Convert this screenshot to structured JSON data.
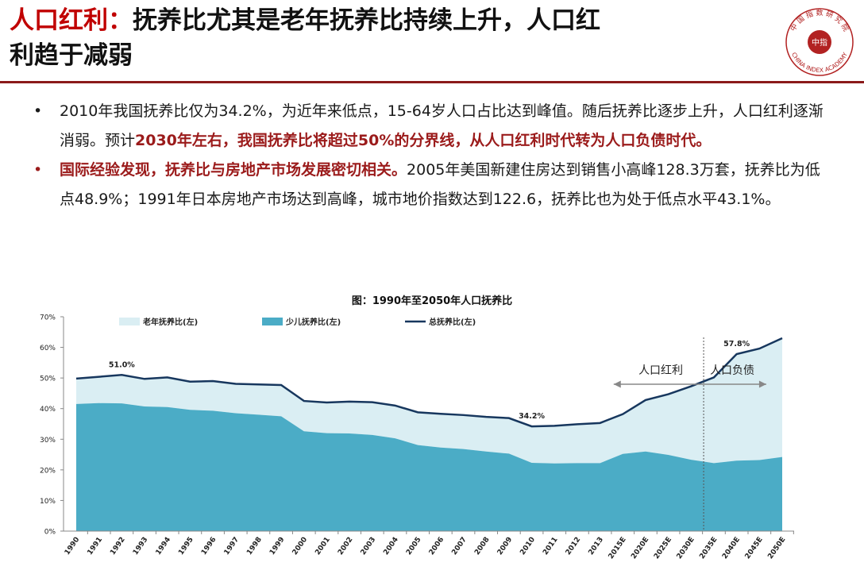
{
  "title": {
    "prefix": "人口红利：",
    "line1_rest": "抚养比尤其是老年抚养比持续上升，人口红",
    "line2": "利趋于减弱"
  },
  "logo": {
    "top_text": "中 国 指 数 研 究 院",
    "bottom_text": "CHINA INDEX ACADEMY",
    "center_text": "中指",
    "color": "#b22222"
  },
  "bullets": [
    {
      "marker": "•",
      "marker_color": "#1a1a1a",
      "segments": [
        {
          "text": "2010年我国抚养比仅为34.2%，为近年来低点，15-64岁人口占比达到峰值。随后抚养比逐步上升，人口红利逐渐消弱。预计",
          "hl": false
        },
        {
          "text": "2030年左右，我国抚养比将超过50%的分界线，从人口红利时代转为人口负债时代。",
          "hl": true
        }
      ]
    },
    {
      "marker": "•",
      "marker_color": "#9b1b1b",
      "segments": [
        {
          "text": "国际经验发现，抚养比与房地产市场发展密切相关。",
          "hl": true
        },
        {
          "text": "2005年美国新建住房达到销售小高峰128.3万套，抚养比为低点48.9%；1991年日本房地产市场达到高峰，城市地价指数达到122.6，抚养比也为处于低点水平43.1%。",
          "hl": false
        }
      ]
    }
  ],
  "chart_data": {
    "type": "area",
    "title": "图：1990年至2050年人口抚养比",
    "categories": [
      "1990",
      "1991",
      "1992",
      "1993",
      "1994",
      "1995",
      "1996",
      "1997",
      "1998",
      "1999",
      "2000",
      "2001",
      "2002",
      "2003",
      "2004",
      "2005",
      "2006",
      "2007",
      "2008",
      "2009",
      "2010",
      "2011",
      "2012",
      "2013",
      "2015E",
      "2020E",
      "2025E",
      "2030E",
      "2035E",
      "2040E",
      "2045E",
      "2050E"
    ],
    "series": [
      {
        "name": "老年抚养比(左)",
        "kind": "area",
        "color": "#daeef3",
        "values": [
          8.3,
          8.6,
          8.9,
          9.0,
          9.5,
          9.2,
          9.5,
          9.6,
          9.9,
          10.2,
          9.9,
          10.1,
          10.4,
          10.7,
          10.7,
          10.7,
          11.0,
          11.1,
          11.3,
          11.6,
          11.9,
          12.3,
          12.7,
          13.1,
          13.0,
          16.8,
          19.8,
          24.0,
          28.0,
          34.5,
          36.4,
          38.8
        ]
      },
      {
        "name": "少儿抚养比(左)",
        "kind": "area",
        "color": "#4bacc6",
        "values": [
          41.5,
          41.8,
          41.7,
          40.7,
          40.5,
          39.6,
          39.3,
          38.5,
          38.0,
          37.5,
          32.6,
          32.0,
          31.9,
          31.4,
          30.3,
          28.1,
          27.3,
          26.8,
          26.0,
          25.3,
          22.3,
          22.1,
          22.2,
          22.2,
          25.2,
          26.0,
          24.9,
          23.3,
          22.2,
          23.0,
          23.2,
          24.2
        ]
      },
      {
        "name": "总抚养比(左)",
        "kind": "line",
        "color": "#17375e",
        "values": [
          49.8,
          50.4,
          51.0,
          49.7,
          50.2,
          48.8,
          49.0,
          48.1,
          47.9,
          47.7,
          42.5,
          42.0,
          42.3,
          42.1,
          41.0,
          38.8,
          38.3,
          37.9,
          37.3,
          36.9,
          34.2,
          34.4,
          34.9,
          35.3,
          38.2,
          42.8,
          44.7,
          47.3,
          50.2,
          57.8,
          59.6,
          63.0
        ]
      }
    ],
    "y_ticks": [
      "0%",
      "10%",
      "20%",
      "30%",
      "40%",
      "50%",
      "60%",
      "70%"
    ],
    "ylim": [
      0,
      70
    ],
    "data_labels": [
      {
        "category": "1992",
        "value": 51.0,
        "text": "51.0%"
      },
      {
        "category": "2010",
        "value": 34.2,
        "text": "34.2%"
      },
      {
        "category": "2040E",
        "value": 57.8,
        "text": "57.8%"
      }
    ],
    "annotation": {
      "divider_category": "2030E",
      "left_label": "人口红利",
      "right_label": "人口负债",
      "arrow_from": "2015E",
      "arrow_to": "2045E"
    },
    "legend_position": "top",
    "grid": false
  }
}
